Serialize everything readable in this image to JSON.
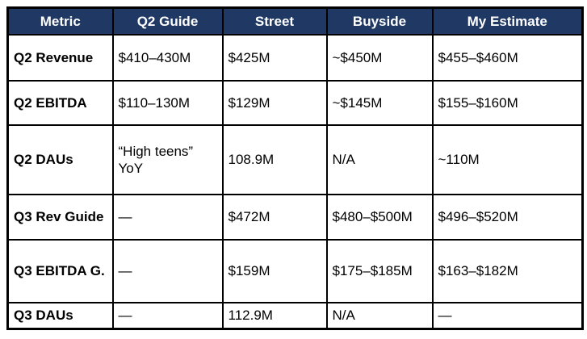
{
  "header": {
    "columns": [
      "Metric",
      "Q2 Guide",
      "Street",
      "Buyside",
      "My Estimate"
    ]
  },
  "rows": [
    {
      "cells": [
        "Q2 Revenue",
        "$410–430M",
        "$425M",
        "~$450M",
        "$455–$460M"
      ]
    },
    {
      "cells": [
        "Q2 EBITDA",
        "$110–130M",
        "$129M",
        "~$145M",
        "$155–$160M"
      ]
    },
    {
      "cells": [
        "Q2 DAUs",
        "“High teens” YoY",
        "108.9M",
        "N/A",
        "~110M"
      ]
    },
    {
      "cells": [
        "Q3 Rev Guide",
        "—",
        "$472M",
        "$480–$500M",
        "$496–$520M"
      ]
    },
    {
      "cells": [
        "Q3 EBITDA G.",
        "—",
        "$159M",
        "$175–$185M",
        "$163–$182M"
      ]
    },
    {
      "cells": [
        "Q3 DAUs",
        "—",
        "112.9M",
        "N/A",
        "—"
      ]
    }
  ],
  "colors": {
    "header_bg": "#1F3864",
    "header_text": "#FFFFFF",
    "border": "#000000",
    "cell_bg": "#FFFFFF",
    "cell_text": "#000000"
  }
}
